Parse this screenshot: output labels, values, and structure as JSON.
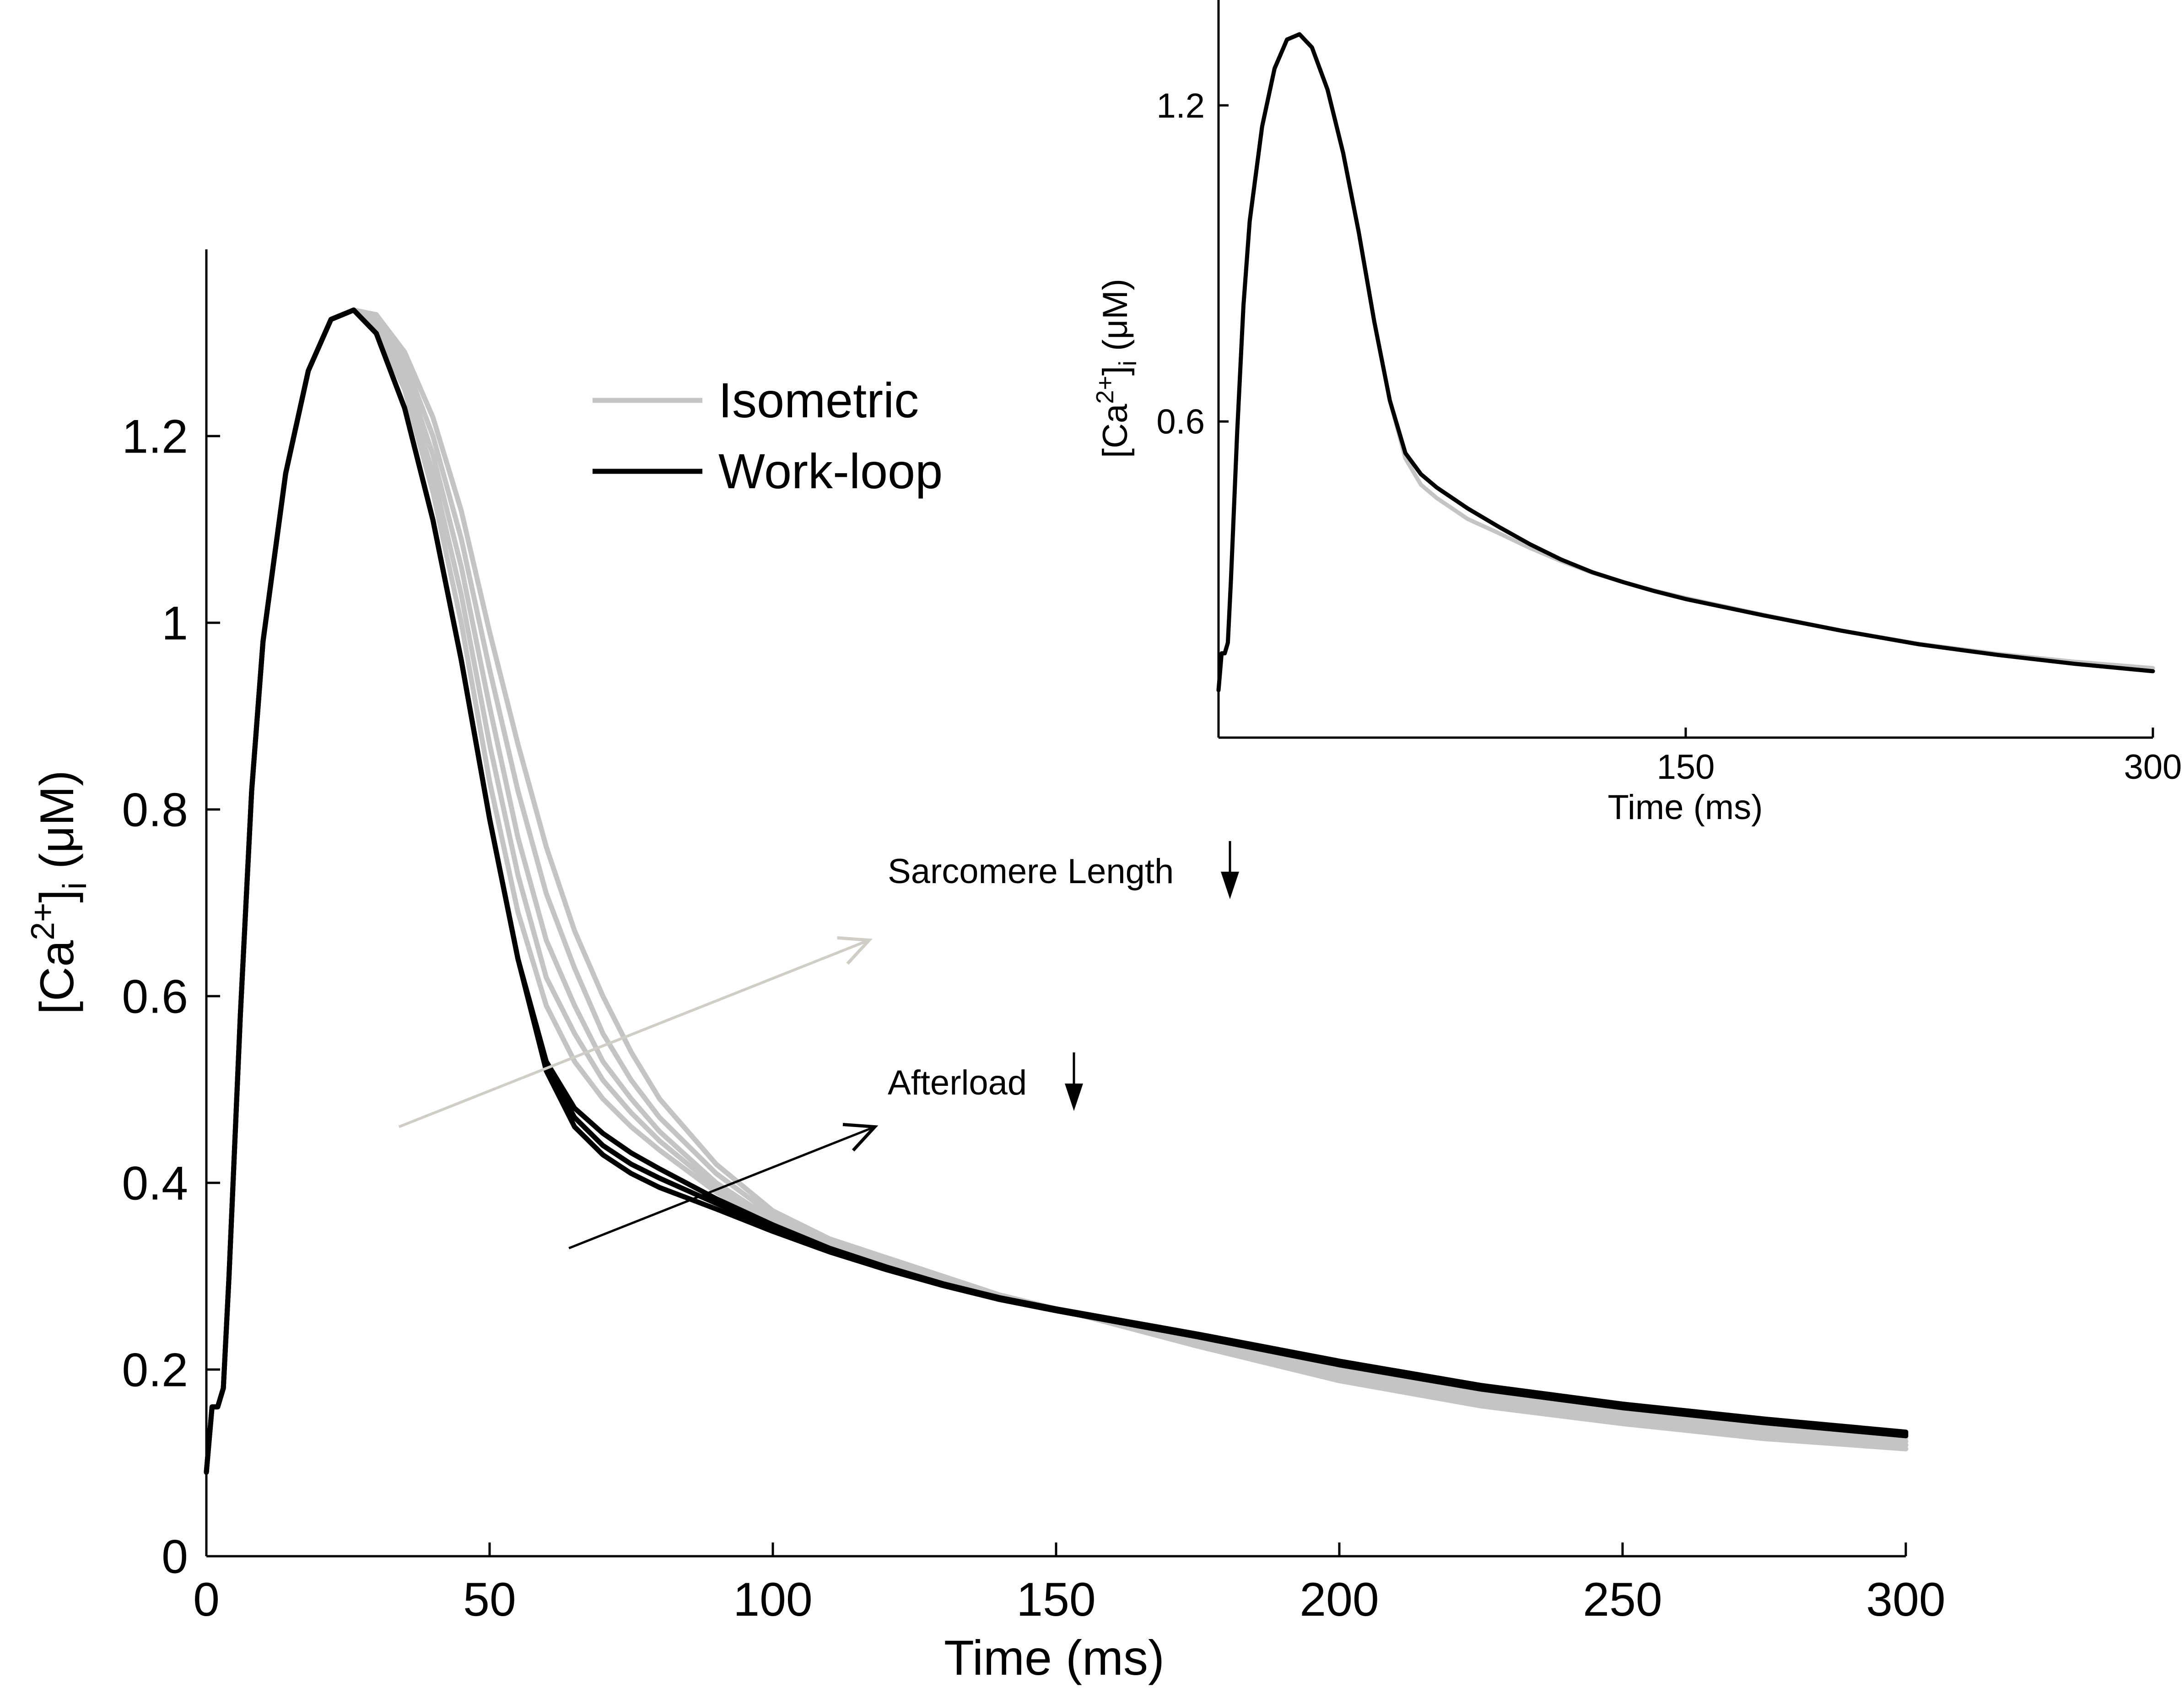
{
  "colors": {
    "isometric": "#c4c4c4",
    "work_loop": "#000000",
    "sarcomere_arrow": "#cfcdc6",
    "afterload_arrow": "#000000"
  },
  "chart_data": [
    {
      "type": "line",
      "title": "",
      "xlabel": "Time (ms)",
      "ylabel_main": "[Ca",
      "ylabel_sup": "2+",
      "ylabel_bracket": "]",
      "ylabel_sub": "i",
      "ylabel_unit": " (μM)",
      "xlim": [
        0,
        300
      ],
      "ylim": [
        0,
        1.4
      ],
      "xticks": [
        0,
        50,
        100,
        150,
        200,
        250,
        300
      ],
      "xtick_labels": [
        "0",
        "50",
        "100",
        "150",
        "200",
        "250",
        "300"
      ],
      "yticks": [
        0,
        0.2,
        0.4,
        0.6,
        0.8,
        1.0,
        1.2
      ],
      "ytick_labels": [
        "0",
        "0.2",
        "0.4",
        "0.6",
        "0.8",
        "1",
        "1.2"
      ],
      "grid": false,
      "legend_placement": "top-center",
      "legend": [
        {
          "label": "Isometric",
          "color": "#c4c4c4"
        },
        {
          "label": "Work-loop",
          "color": "#000000"
        }
      ],
      "annotations": [
        {
          "text": "Sarcomere Length",
          "arrow": "down",
          "color": "#cfcdc6",
          "from": [
            34,
            0.46
          ],
          "to": [
            117,
            0.66
          ]
        },
        {
          "text": "Afterload",
          "arrow": "down",
          "color": "#000000",
          "from": [
            64,
            0.33
          ],
          "to": [
            118,
            0.46
          ]
        }
      ],
      "series": [
        {
          "group": "Isometric",
          "color": "#c4c4c4",
          "x": [
            0,
            1,
            2,
            3,
            4,
            6,
            8,
            10,
            14,
            18,
            22,
            26,
            30,
            35,
            40,
            45,
            50,
            55,
            60,
            65,
            70,
            75,
            80,
            90,
            100,
            110,
            120,
            130,
            140,
            150,
            175,
            200,
            225,
            250,
            275,
            300
          ],
          "y": [
            0.09,
            0.16,
            0.16,
            0.18,
            0.3,
            0.58,
            0.82,
            0.98,
            1.16,
            1.27,
            1.325,
            1.335,
            1.33,
            1.29,
            1.22,
            1.12,
            0.99,
            0.87,
            0.76,
            0.67,
            0.6,
            0.54,
            0.49,
            0.42,
            0.37,
            0.34,
            0.32,
            0.3,
            0.28,
            0.265,
            0.225,
            0.188,
            0.161,
            0.142,
            0.126,
            0.115
          ]
        },
        {
          "group": "Isometric",
          "color": "#c4c4c4",
          "x": [
            0,
            1,
            2,
            3,
            4,
            6,
            8,
            10,
            14,
            18,
            22,
            26,
            30,
            35,
            40,
            45,
            50,
            55,
            60,
            65,
            70,
            75,
            80,
            90,
            100,
            110,
            120,
            130,
            140,
            150,
            175,
            200,
            225,
            250,
            275,
            300
          ],
          "y": [
            0.09,
            0.16,
            0.16,
            0.18,
            0.3,
            0.58,
            0.82,
            0.98,
            1.16,
            1.27,
            1.325,
            1.335,
            1.33,
            1.28,
            1.2,
            1.09,
            0.95,
            0.82,
            0.71,
            0.63,
            0.56,
            0.51,
            0.47,
            0.41,
            0.365,
            0.335,
            0.315,
            0.295,
            0.278,
            0.265,
            0.228,
            0.193,
            0.166,
            0.146,
            0.13,
            0.119
          ]
        },
        {
          "group": "Isometric",
          "color": "#c4c4c4",
          "x": [
            0,
            1,
            2,
            3,
            4,
            6,
            8,
            10,
            14,
            18,
            22,
            26,
            30,
            35,
            40,
            45,
            50,
            55,
            60,
            65,
            70,
            75,
            80,
            90,
            100,
            110,
            120,
            130,
            140,
            150,
            175,
            200,
            225,
            250,
            275,
            300
          ],
          "y": [
            0.09,
            0.16,
            0.16,
            0.18,
            0.3,
            0.58,
            0.82,
            0.98,
            1.16,
            1.27,
            1.325,
            1.335,
            1.325,
            1.27,
            1.18,
            1.06,
            0.91,
            0.77,
            0.66,
            0.59,
            0.53,
            0.49,
            0.455,
            0.4,
            0.36,
            0.33,
            0.31,
            0.293,
            0.277,
            0.265,
            0.231,
            0.198,
            0.171,
            0.15,
            0.134,
            0.123
          ]
        },
        {
          "group": "Isometric",
          "color": "#c4c4c4",
          "x": [
            0,
            1,
            2,
            3,
            4,
            6,
            8,
            10,
            14,
            18,
            22,
            26,
            30,
            35,
            40,
            45,
            50,
            55,
            60,
            65,
            70,
            75,
            80,
            90,
            100,
            110,
            120,
            130,
            140,
            150,
            175,
            200,
            225,
            250,
            275,
            300
          ],
          "y": [
            0.09,
            0.16,
            0.16,
            0.18,
            0.3,
            0.58,
            0.82,
            0.98,
            1.16,
            1.27,
            1.325,
            1.335,
            1.32,
            1.26,
            1.16,
            1.03,
            0.87,
            0.73,
            0.62,
            0.56,
            0.51,
            0.475,
            0.445,
            0.395,
            0.358,
            0.33,
            0.308,
            0.291,
            0.276,
            0.265,
            0.234,
            0.202,
            0.175,
            0.154,
            0.138,
            0.127
          ]
        },
        {
          "group": "Isometric",
          "color": "#c4c4c4",
          "x": [
            0,
            1,
            2,
            3,
            4,
            6,
            8,
            10,
            14,
            18,
            22,
            26,
            30,
            35,
            40,
            45,
            50,
            55,
            60,
            65,
            70,
            75,
            80,
            90,
            100,
            110,
            120,
            130,
            140,
            150,
            175,
            200,
            225,
            250,
            275,
            300
          ],
          "y": [
            0.09,
            0.16,
            0.16,
            0.18,
            0.3,
            0.58,
            0.82,
            0.98,
            1.16,
            1.27,
            1.325,
            1.335,
            1.315,
            1.25,
            1.14,
            1.0,
            0.83,
            0.69,
            0.59,
            0.53,
            0.49,
            0.46,
            0.435,
            0.39,
            0.355,
            0.328,
            0.307,
            0.29,
            0.276,
            0.265,
            0.236,
            0.206,
            0.179,
            0.158,
            0.142,
            0.131
          ]
        },
        {
          "group": "Work-loop",
          "color": "#000000",
          "x": [
            0,
            1,
            2,
            3,
            4,
            6,
            8,
            10,
            14,
            18,
            22,
            26,
            30,
            35,
            40,
            45,
            50,
            55,
            60,
            65,
            70,
            75,
            80,
            90,
            100,
            110,
            120,
            130,
            140,
            150,
            175,
            200,
            225,
            250,
            275,
            300
          ],
          "y": [
            0.09,
            0.16,
            0.16,
            0.18,
            0.3,
            0.58,
            0.82,
            0.98,
            1.16,
            1.27,
            1.325,
            1.335,
            1.31,
            1.23,
            1.11,
            0.96,
            0.79,
            0.64,
            0.53,
            0.48,
            0.453,
            0.432,
            0.415,
            0.383,
            0.355,
            0.33,
            0.31,
            0.292,
            0.277,
            0.265,
            0.238,
            0.209,
            0.183,
            0.163,
            0.147,
            0.133
          ]
        },
        {
          "group": "Work-loop",
          "color": "#000000",
          "x": [
            0,
            1,
            2,
            3,
            4,
            6,
            8,
            10,
            14,
            18,
            22,
            26,
            30,
            35,
            40,
            45,
            50,
            55,
            60,
            65,
            70,
            75,
            80,
            90,
            100,
            110,
            120,
            130,
            140,
            150,
            175,
            200,
            225,
            250,
            275,
            300
          ],
          "y": [
            0.09,
            0.16,
            0.16,
            0.18,
            0.3,
            0.58,
            0.82,
            0.98,
            1.16,
            1.27,
            1.325,
            1.335,
            1.31,
            1.23,
            1.11,
            0.96,
            0.79,
            0.64,
            0.525,
            0.47,
            0.44,
            0.42,
            0.405,
            0.378,
            0.352,
            0.328,
            0.308,
            0.291,
            0.276,
            0.264,
            0.236,
            0.207,
            0.181,
            0.161,
            0.145,
            0.131
          ]
        },
        {
          "group": "Work-loop",
          "color": "#000000",
          "x": [
            0,
            1,
            2,
            3,
            4,
            6,
            8,
            10,
            14,
            18,
            22,
            26,
            30,
            35,
            40,
            45,
            50,
            55,
            60,
            65,
            70,
            75,
            80,
            90,
            100,
            110,
            120,
            130,
            140,
            150,
            175,
            200,
            225,
            250,
            275,
            300
          ],
          "y": [
            0.09,
            0.16,
            0.16,
            0.18,
            0.3,
            0.58,
            0.82,
            0.98,
            1.16,
            1.27,
            1.325,
            1.335,
            1.31,
            1.23,
            1.11,
            0.96,
            0.79,
            0.64,
            0.52,
            0.46,
            0.43,
            0.41,
            0.395,
            0.372,
            0.348,
            0.326,
            0.307,
            0.29,
            0.275,
            0.263,
            0.235,
            0.205,
            0.179,
            0.159,
            0.143,
            0.129
          ]
        }
      ]
    },
    {
      "type": "line",
      "title": "",
      "xlabel": "Time (ms)",
      "ylabel_main": "[Ca",
      "ylabel_sup": "2+",
      "ylabel_bracket": "]",
      "ylabel_sub": "i",
      "ylabel_unit": " (μM)",
      "xlim": [
        0,
        300
      ],
      "ylim": [
        0,
        1.4
      ],
      "xticks": [
        150,
        300
      ],
      "xtick_labels": [
        "150",
        "300"
      ],
      "yticks": [
        0.6,
        1.2
      ],
      "ytick_labels": [
        "0.6",
        "1.2"
      ],
      "grid": false,
      "series": [
        {
          "group": "Isometric",
          "color": "#c4c4c4",
          "x": [
            0,
            1,
            2,
            3,
            4,
            6,
            8,
            10,
            14,
            18,
            22,
            26,
            30,
            35,
            40,
            45,
            50,
            55,
            60,
            65,
            70,
            75,
            80,
            90,
            100,
            110,
            120,
            130,
            140,
            150,
            175,
            200,
            225,
            250,
            275,
            300
          ],
          "y": [
            0.09,
            0.16,
            0.16,
            0.18,
            0.3,
            0.58,
            0.82,
            0.98,
            1.16,
            1.27,
            1.325,
            1.335,
            1.31,
            1.23,
            1.11,
            0.96,
            0.79,
            0.64,
            0.53,
            0.48,
            0.455,
            0.435,
            0.415,
            0.388,
            0.36,
            0.335,
            0.313,
            0.295,
            0.279,
            0.265,
            0.233,
            0.203,
            0.178,
            0.159,
            0.144,
            0.132
          ]
        },
        {
          "group": "Work-loop",
          "color": "#000000",
          "x": [
            0,
            1,
            2,
            3,
            4,
            6,
            8,
            10,
            14,
            18,
            22,
            26,
            30,
            35,
            40,
            45,
            50,
            55,
            60,
            65,
            70,
            75,
            80,
            90,
            100,
            110,
            120,
            130,
            140,
            150,
            175,
            200,
            225,
            250,
            275,
            300
          ],
          "y": [
            0.09,
            0.16,
            0.16,
            0.18,
            0.3,
            0.58,
            0.82,
            0.98,
            1.16,
            1.27,
            1.325,
            1.335,
            1.31,
            1.23,
            1.11,
            0.96,
            0.79,
            0.64,
            0.54,
            0.5,
            0.475,
            0.455,
            0.435,
            0.4,
            0.367,
            0.338,
            0.314,
            0.295,
            0.278,
            0.263,
            0.232,
            0.203,
            0.177,
            0.157,
            0.14,
            0.126
          ]
        }
      ]
    }
  ]
}
